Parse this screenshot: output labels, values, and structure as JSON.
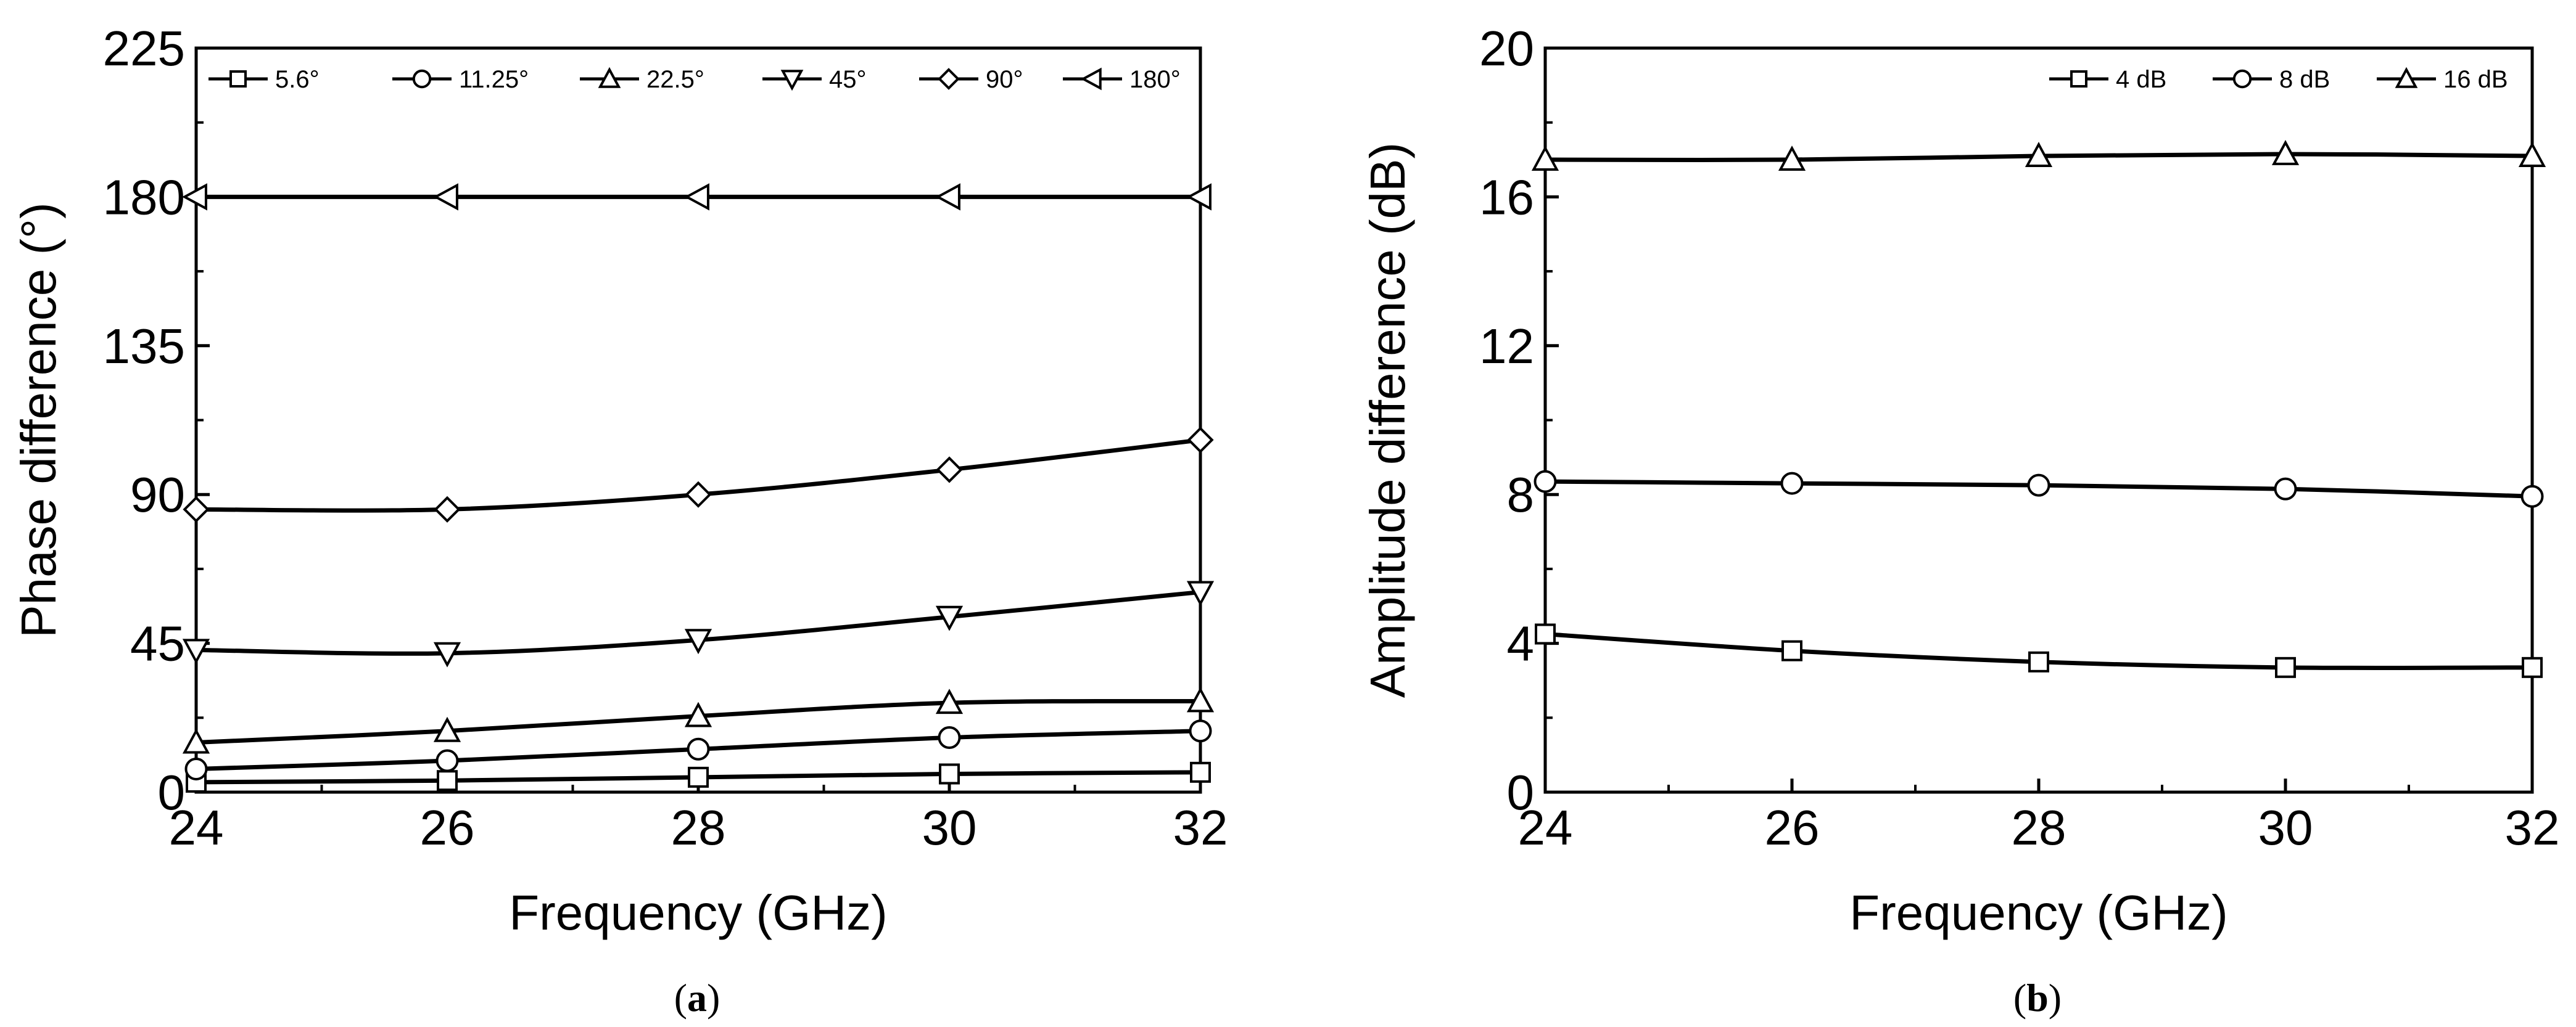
{
  "chart_data": [
    {
      "type": "line",
      "panel_label": [
        "(",
        "a",
        ")"
      ],
      "xlabel": "Frequency (GHz)",
      "ylabel": "Phase difference (°)",
      "x": [
        24,
        26,
        28,
        30,
        32
      ],
      "xlim": [
        24,
        32
      ],
      "ylim": [
        0,
        225
      ],
      "xticks": [
        "24",
        "26",
        "28",
        "30",
        "32"
      ],
      "yticks": [
        "0",
        "45",
        "90",
        "135",
        "180",
        "225"
      ],
      "legend_position": "top",
      "grid": false,
      "series": [
        {
          "name": "5.6°",
          "marker": "square",
          "values": [
            3,
            3.5,
            4.5,
            5.5,
            6
          ]
        },
        {
          "name": "11.25°",
          "marker": "circle",
          "values": [
            7,
            9.5,
            13,
            16.5,
            18.5
          ]
        },
        {
          "name": "22.5°",
          "marker": "triangle-up",
          "values": [
            15,
            18.5,
            23,
            27,
            27.5
          ]
        },
        {
          "name": "45°",
          "marker": "triangle-down",
          "values": [
            43,
            42,
            46,
            53,
            60.5
          ]
        },
        {
          "name": "90°",
          "marker": "diamond",
          "values": [
            85.5,
            85.5,
            90,
            97.5,
            106.5
          ]
        },
        {
          "name": "180°",
          "marker": "triangle-left",
          "values": [
            180,
            180,
            180,
            180,
            180
          ]
        }
      ]
    },
    {
      "type": "line",
      "panel_label": [
        "(",
        "b",
        ")"
      ],
      "xlabel": "Frequency (GHz)",
      "ylabel": "Amplitude difference (dB)",
      "x": [
        24,
        26,
        28,
        30,
        32
      ],
      "xlim": [
        24,
        32
      ],
      "ylim": [
        0,
        20
      ],
      "xticks": [
        "24",
        "26",
        "28",
        "30",
        "32"
      ],
      "yticks": [
        "0",
        "4",
        "8",
        "12",
        "16",
        "20"
      ],
      "legend_position": "top-right",
      "grid": false,
      "series": [
        {
          "name": "4 dB",
          "marker": "square",
          "values": [
            4.25,
            3.8,
            3.5,
            3.35,
            3.35
          ]
        },
        {
          "name": "8 dB",
          "marker": "circle",
          "values": [
            8.35,
            8.3,
            8.25,
            8.15,
            7.95
          ]
        },
        {
          "name": "16 dB",
          "marker": "triangle-up",
          "values": [
            17.0,
            17.0,
            17.1,
            17.15,
            17.1
          ]
        }
      ]
    }
  ],
  "colors": {
    "line": "#000000",
    "marker_fill": "#ffffff",
    "background": "#ffffff"
  }
}
